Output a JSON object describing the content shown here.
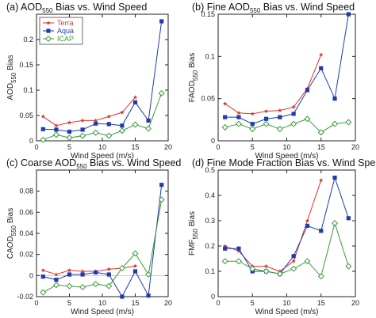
{
  "chart_data": [
    {
      "type": "line",
      "panel": "a",
      "title": {
        "prefix": "(a) AOD",
        "sub": "550",
        "suffix": " Bias vs. Wind Speed"
      },
      "xlabel": "Wind Speed (m/s)",
      "ylabel": {
        "prefix": "AOD",
        "sub": "550",
        "suffix": " Bias"
      },
      "xlim": [
        0,
        20
      ],
      "ylim": [
        0,
        0.25
      ],
      "xticks": [
        0,
        5,
        10,
        15,
        20
      ],
      "yticks": [
        0,
        0.05,
        0.1,
        0.15,
        0.2
      ],
      "ytick_labels": [
        "0",
        "0.05",
        "0.1",
        "0.15",
        "0.2"
      ],
      "legend": {
        "placement": "top-left",
        "entries": [
          "Terra",
          "Aqua",
          "ICAP"
        ]
      },
      "series": [
        {
          "name": "Terra",
          "color": "#d9382a",
          "marker": "star",
          "x": [
            1,
            3,
            5,
            7,
            9,
            11,
            13,
            15
          ],
          "y": [
            0.048,
            0.03,
            0.036,
            0.04,
            0.04,
            0.048,
            0.056,
            0.086
          ]
        },
        {
          "name": "Aqua",
          "color": "#1f3bb3",
          "marker": "square",
          "x": [
            1,
            3,
            5,
            7,
            9,
            11,
            13,
            15,
            17,
            19
          ],
          "y": [
            0.023,
            0.022,
            0.018,
            0.022,
            0.034,
            0.033,
            0.03,
            0.076,
            0.04,
            0.236
          ]
        },
        {
          "name": "ICAP",
          "color": "#3a9a3a",
          "marker": "diamond",
          "x": [
            1,
            3,
            5,
            7,
            9,
            11,
            13,
            15,
            17,
            19
          ],
          "y": [
            0.002,
            0.012,
            0.006,
            0.01,
            0.016,
            0.01,
            0.02,
            0.032,
            0.024,
            0.094
          ]
        }
      ]
    },
    {
      "type": "line",
      "panel": "b",
      "title": {
        "prefix": "(b) Fine AOD",
        "sub": "550",
        "suffix": " Bias vs. Wind Speed"
      },
      "xlabel": "Wind Speed (m/s)",
      "ylabel": {
        "prefix": "FAOD",
        "sub": "550",
        "suffix": " Bias"
      },
      "xlim": [
        0,
        20
      ],
      "ylim": [
        0,
        0.15
      ],
      "xticks": [
        0,
        5,
        10,
        15,
        20
      ],
      "yticks": [
        0,
        0.05,
        0.1,
        0.15
      ],
      "ytick_labels": [
        "0",
        "0.05",
        "0.1",
        "0.15"
      ],
      "series": [
        {
          "name": "Terra",
          "color": "#d9382a",
          "marker": "star",
          "x": [
            1,
            3,
            5,
            7,
            9,
            11,
            13,
            15
          ],
          "y": [
            0.044,
            0.033,
            0.032,
            0.035,
            0.036,
            0.04,
            0.062,
            0.102
          ]
        },
        {
          "name": "Aqua",
          "color": "#1f3bb3",
          "marker": "square",
          "x": [
            1,
            3,
            5,
            7,
            9,
            11,
            13,
            15,
            17,
            19
          ],
          "y": [
            0.028,
            0.028,
            0.02,
            0.026,
            0.028,
            0.032,
            0.06,
            0.086,
            0.05,
            0.15
          ]
        },
        {
          "name": "ICAP",
          "color": "#3a9a3a",
          "marker": "diamond",
          "x": [
            1,
            3,
            5,
            7,
            9,
            11,
            13,
            15,
            17,
            19
          ],
          "y": [
            0.016,
            0.02,
            0.014,
            0.02,
            0.014,
            0.02,
            0.026,
            0.01,
            0.02,
            0.022
          ]
        }
      ]
    },
    {
      "type": "line",
      "panel": "c",
      "title": {
        "prefix": "(c) Coarse AOD",
        "sub": "550",
        "suffix": " Bias vs. Wind Speed"
      },
      "xlabel": "Wind Speed (m/s)",
      "ylabel": {
        "prefix": "CAOD",
        "sub": "550",
        "suffix": " Bias"
      },
      "xlim": [
        0,
        20
      ],
      "ylim": [
        -0.02,
        0.1
      ],
      "xticks": [
        0,
        5,
        10,
        15,
        20
      ],
      "yticks": [
        -0.02,
        0,
        0.02,
        0.04,
        0.06,
        0.08
      ],
      "ytick_labels": [
        "-0.02",
        "0",
        "0.02",
        "0.04",
        "0.06",
        "0.08"
      ],
      "series": [
        {
          "name": "Terra",
          "color": "#d9382a",
          "marker": "star",
          "x": [
            1,
            3,
            5,
            7,
            9,
            11,
            13,
            15
          ],
          "y": [
            0.005,
            0.001,
            0.005,
            0.004,
            0.004,
            0.006,
            0.007,
            0.009
          ]
        },
        {
          "name": "Aqua",
          "color": "#1f3bb3",
          "marker": "square",
          "x": [
            1,
            3,
            5,
            7,
            9,
            11,
            13,
            15,
            17,
            19
          ],
          "y": [
            -0.001,
            -0.004,
            0.001,
            0.001,
            0.003,
            0.001,
            -0.02,
            0.004,
            -0.019,
            0.086
          ]
        },
        {
          "name": "ICAP",
          "color": "#3a9a3a",
          "marker": "diamond",
          "x": [
            1,
            3,
            5,
            7,
            9,
            11,
            13,
            15,
            17,
            19
          ],
          "y": [
            -0.016,
            -0.009,
            -0.01,
            -0.011,
            -0.008,
            -0.01,
            0.007,
            0.021,
            0.001,
            0.072
          ]
        }
      ]
    },
    {
      "type": "line",
      "panel": "d",
      "title": {
        "prefix": "(d) Fine Mode Fraction Bias vs. Wind Speed",
        "sub": "",
        "suffix": ""
      },
      "xlabel": "Wind Speed (m/s)",
      "ylabel": {
        "prefix": "FMF",
        "sub": "550",
        "suffix": " Bias"
      },
      "xlim": [
        0,
        20
      ],
      "ylim": [
        0,
        0.5
      ],
      "xticks": [
        0,
        5,
        10,
        15,
        20
      ],
      "yticks": [
        0,
        0.1,
        0.2,
        0.3,
        0.4,
        0.5
      ],
      "ytick_labels": [
        "0",
        "0.1",
        "0.2",
        "0.3",
        "0.4",
        "0.5"
      ],
      "series": [
        {
          "name": "Terra",
          "color": "#d9382a",
          "marker": "star",
          "x": [
            1,
            3,
            5,
            7,
            9,
            11,
            13,
            15
          ],
          "y": [
            0.2,
            0.18,
            0.12,
            0.12,
            0.1,
            0.14,
            0.3,
            0.46
          ]
        },
        {
          "name": "Aqua",
          "color": "#1f3bb3",
          "marker": "square",
          "x": [
            1,
            3,
            5,
            7,
            9,
            11,
            13,
            15,
            17,
            19
          ],
          "y": [
            0.19,
            0.19,
            0.1,
            0.1,
            0.09,
            0.16,
            0.28,
            0.26,
            0.47,
            0.31
          ]
        },
        {
          "name": "ICAP",
          "color": "#3a9a3a",
          "marker": "diamond",
          "x": [
            1,
            3,
            5,
            7,
            9,
            11,
            13,
            15,
            17,
            19
          ],
          "y": [
            0.14,
            0.14,
            0.11,
            0.1,
            0.09,
            0.11,
            0.14,
            0.08,
            0.29,
            0.12
          ]
        }
      ]
    }
  ]
}
